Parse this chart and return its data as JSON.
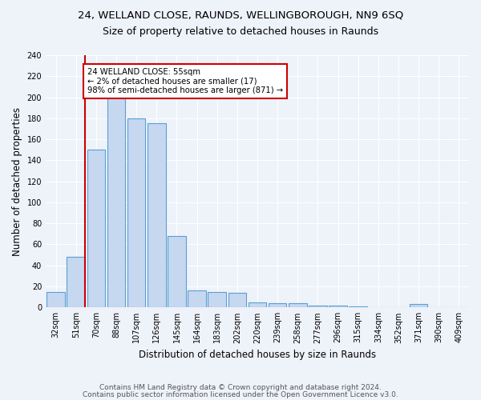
{
  "title1": "24, WELLAND CLOSE, RAUNDS, WELLINGBOROUGH, NN9 6SQ",
  "title2": "Size of property relative to detached houses in Raunds",
  "xlabel": "Distribution of detached houses by size in Raunds",
  "ylabel": "Number of detached properties",
  "categories": [
    "32sqm",
    "51sqm",
    "70sqm",
    "88sqm",
    "107sqm",
    "126sqm",
    "145sqm",
    "164sqm",
    "183sqm",
    "202sqm",
    "220sqm",
    "239sqm",
    "258sqm",
    "277sqm",
    "296sqm",
    "315sqm",
    "334sqm",
    "352sqm",
    "371sqm",
    "390sqm",
    "409sqm"
  ],
  "bar_values": [
    15,
    48,
    150,
    200,
    180,
    175,
    68,
    16,
    15,
    14,
    5,
    4,
    4,
    2,
    2,
    1,
    0,
    0,
    3,
    0,
    0
  ],
  "bar_color": "#c5d8f0",
  "bar_edge_color": "#5a9fd4",
  "subject_bar_index": 1,
  "subject_line_color": "#cc0000",
  "annotation_text": "24 WELLAND CLOSE: 55sqm\n← 2% of detached houses are smaller (17)\n98% of semi-detached houses are larger (871) →",
  "annotation_box_color": "white",
  "annotation_box_edge_color": "#cc0000",
  "ylim": [
    0,
    240
  ],
  "yticks": [
    0,
    20,
    40,
    60,
    80,
    100,
    120,
    140,
    160,
    180,
    200,
    220,
    240
  ],
  "footer1": "Contains HM Land Registry data © Crown copyright and database right 2024.",
  "footer2": "Contains public sector information licensed under the Open Government Licence v3.0.",
  "bg_color": "#eef2f9",
  "grid_color": "#ffffff",
  "title1_fontsize": 9.5,
  "title2_fontsize": 9.0,
  "ylabel_fontsize": 8.5,
  "xlabel_fontsize": 8.5,
  "tick_fontsize": 7.0,
  "footer_fontsize": 6.5
}
